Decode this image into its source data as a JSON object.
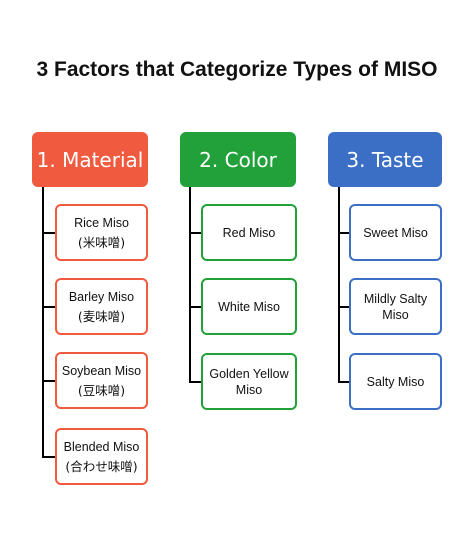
{
  "title": "3 Factors that Categorize Types of MISO",
  "categories": [
    {
      "header": "1. Material",
      "color": "#f05a3e",
      "items": [
        {
          "label": "Rice Miso",
          "sub": "(米味噌)"
        },
        {
          "label": "Barley Miso",
          "sub": "(麦味噌)"
        },
        {
          "label": "Soybean Miso",
          "sub": "(豆味噌)"
        },
        {
          "label": "Blended Miso",
          "sub": "(合わせ味噌)"
        }
      ]
    },
    {
      "header": "2. Color",
      "color": "#22a03a",
      "items": [
        {
          "label": "Red Miso"
        },
        {
          "label": "White Miso"
        },
        {
          "label": "Golden Yellow Miso"
        }
      ]
    },
    {
      "header": "3. Taste",
      "color": "#3b6fc6",
      "items": [
        {
          "label": "Sweet Miso"
        },
        {
          "label": "Mildly Salty Miso"
        },
        {
          "label": "Salty Miso"
        }
      ]
    }
  ]
}
